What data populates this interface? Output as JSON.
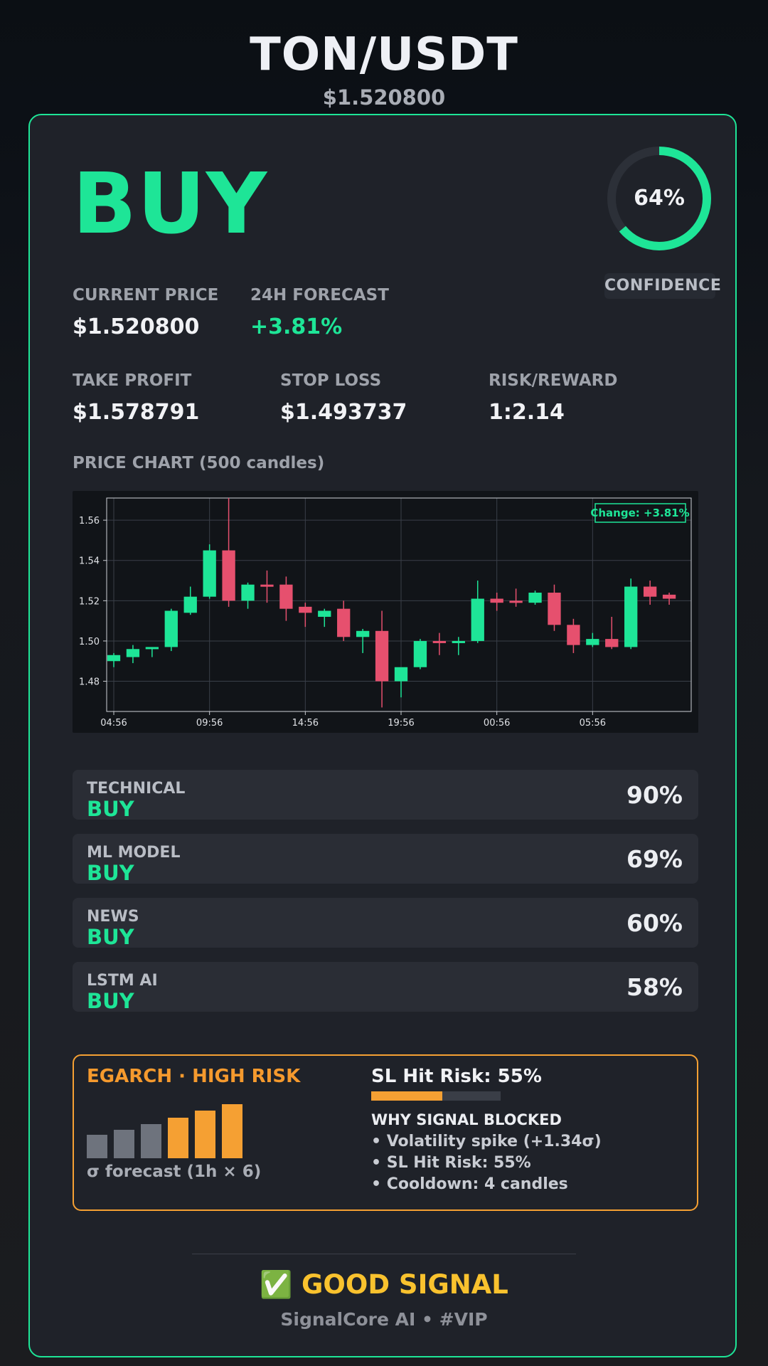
{
  "header": {
    "pair": "TON/USDT",
    "price": "$1.520800"
  },
  "signal": {
    "label": "BUY",
    "confidence_pct": 64,
    "confidence_text": "64%",
    "confidence_label": "CONFIDENCE"
  },
  "stats": {
    "current_price_label": "CURRENT PRICE",
    "current_price": "$1.520800",
    "forecast_label": "24H FORECAST",
    "forecast": "+3.81%",
    "take_profit_label": "TAKE PROFIT",
    "take_profit": "$1.578791",
    "stop_loss_label": "STOP LOSS",
    "stop_loss": "$1.493737",
    "risk_reward_label": "RISK/REWARD",
    "risk_reward": "1:2.14"
  },
  "chart_title": "PRICE CHART (500 candles)",
  "chart_data": {
    "type": "candlestick",
    "annotation": "Change: +3.81%",
    "y_ticks": [
      "1.48",
      "1.50",
      "1.52",
      "1.54",
      "1.56"
    ],
    "ylim": [
      1.465,
      1.571
    ],
    "x_ticks": [
      "04:56",
      "09:56",
      "14:56",
      "19:56",
      "00:56",
      "05:56"
    ],
    "grid": true,
    "colors": {
      "up": "#1ee597",
      "down": "#e6506e"
    },
    "candles": [
      {
        "o": 1.49,
        "h": 1.494,
        "l": 1.487,
        "c": 1.493
      },
      {
        "o": 1.492,
        "h": 1.498,
        "l": 1.489,
        "c": 1.496
      },
      {
        "o": 1.496,
        "h": 1.497,
        "l": 1.492,
        "c": 1.497
      },
      {
        "o": 1.497,
        "h": 1.516,
        "l": 1.495,
        "c": 1.515
      },
      {
        "o": 1.514,
        "h": 1.527,
        "l": 1.513,
        "c": 1.522
      },
      {
        "o": 1.522,
        "h": 1.548,
        "l": 1.521,
        "c": 1.545
      },
      {
        "o": 1.545,
        "h": 1.571,
        "l": 1.517,
        "c": 1.52
      },
      {
        "o": 1.52,
        "h": 1.529,
        "l": 1.516,
        "c": 1.528
      },
      {
        "o": 1.528,
        "h": 1.535,
        "l": 1.519,
        "c": 1.527
      },
      {
        "o": 1.528,
        "h": 1.532,
        "l": 1.51,
        "c": 1.516
      },
      {
        "o": 1.517,
        "h": 1.519,
        "l": 1.507,
        "c": 1.514
      },
      {
        "o": 1.512,
        "h": 1.516,
        "l": 1.507,
        "c": 1.515
      },
      {
        "o": 1.516,
        "h": 1.52,
        "l": 1.5,
        "c": 1.502
      },
      {
        "o": 1.502,
        "h": 1.506,
        "l": 1.494,
        "c": 1.505
      },
      {
        "o": 1.505,
        "h": 1.515,
        "l": 1.467,
        "c": 1.48
      },
      {
        "o": 1.48,
        "h": 1.486,
        "l": 1.472,
        "c": 1.487
      },
      {
        "o": 1.487,
        "h": 1.501,
        "l": 1.486,
        "c": 1.5
      },
      {
        "o": 1.5,
        "h": 1.504,
        "l": 1.493,
        "c": 1.499
      },
      {
        "o": 1.499,
        "h": 1.502,
        "l": 1.493,
        "c": 1.5
      },
      {
        "o": 1.5,
        "h": 1.53,
        "l": 1.499,
        "c": 1.521
      },
      {
        "o": 1.521,
        "h": 1.524,
        "l": 1.515,
        "c": 1.519
      },
      {
        "o": 1.52,
        "h": 1.526,
        "l": 1.517,
        "c": 1.519
      },
      {
        "o": 1.519,
        "h": 1.525,
        "l": 1.518,
        "c": 1.524
      },
      {
        "o": 1.524,
        "h": 1.528,
        "l": 1.505,
        "c": 1.508
      },
      {
        "o": 1.508,
        "h": 1.511,
        "l": 1.494,
        "c": 1.498
      },
      {
        "o": 1.498,
        "h": 1.504,
        "l": 1.497,
        "c": 1.501
      },
      {
        "o": 1.501,
        "h": 1.512,
        "l": 1.496,
        "c": 1.497
      },
      {
        "o": 1.497,
        "h": 1.531,
        "l": 1.496,
        "c": 1.527
      },
      {
        "o": 1.527,
        "h": 1.53,
        "l": 1.518,
        "c": 1.522
      },
      {
        "o": 1.523,
        "h": 1.524,
        "l": 1.518,
        "c": 1.521
      }
    ]
  },
  "votes": [
    {
      "name": "TECHNICAL",
      "signal": "BUY",
      "pct": "90%"
    },
    {
      "name": "ML MODEL",
      "signal": "BUY",
      "pct": "69%"
    },
    {
      "name": "NEWS",
      "signal": "BUY",
      "pct": "60%"
    },
    {
      "name": "LSTM AI",
      "signal": "BUY",
      "pct": "58%"
    }
  ],
  "risk": {
    "title": "EGARCH · HIGH RISK",
    "sigma_levels": [
      0.44,
      0.52,
      0.63,
      0.75,
      0.88,
      1.0
    ],
    "sigma_caption": "σ forecast (1h × 6)",
    "sl_hit_text": "SL Hit Risk: 55%",
    "sl_hit_fraction": 0.55,
    "why_title": "WHY SIGNAL BLOCKED",
    "why_items": [
      "• Volatility spike (+1.34σ)",
      "• SL Hit Risk: 55%",
      "• Cooldown: 4 candles"
    ],
    "colors": {
      "accent": "#f5a033",
      "muted": "#6e737d"
    }
  },
  "footer": {
    "rating": "✅ GOOD SIGNAL",
    "brand": "SignalCore AI • #VIP"
  }
}
